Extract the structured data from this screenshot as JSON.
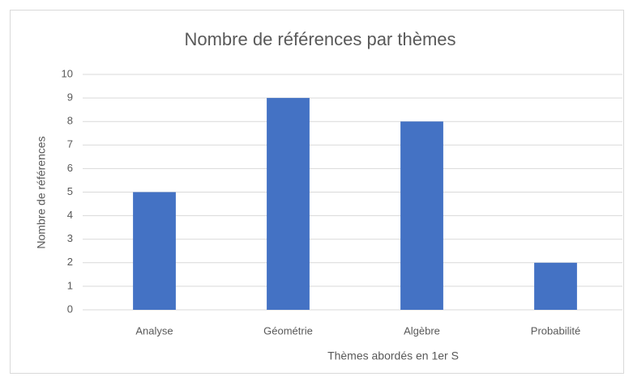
{
  "chart_data": {
    "type": "bar",
    "title": "Nombre de références par thèmes",
    "x_label": "Thèmes abordés en 1er S",
    "y_label": "Nombre de références",
    "categories": [
      "Analyse",
      "Géométrie",
      "Algèbre",
      "Probabilité"
    ],
    "values": [
      5,
      9,
      8,
      2
    ],
    "color": "#4472c4",
    "ylim": [
      0,
      10
    ],
    "yticks": [
      0,
      1,
      2,
      3,
      4,
      5,
      6,
      7,
      8,
      9,
      10
    ],
    "grid": true
  }
}
